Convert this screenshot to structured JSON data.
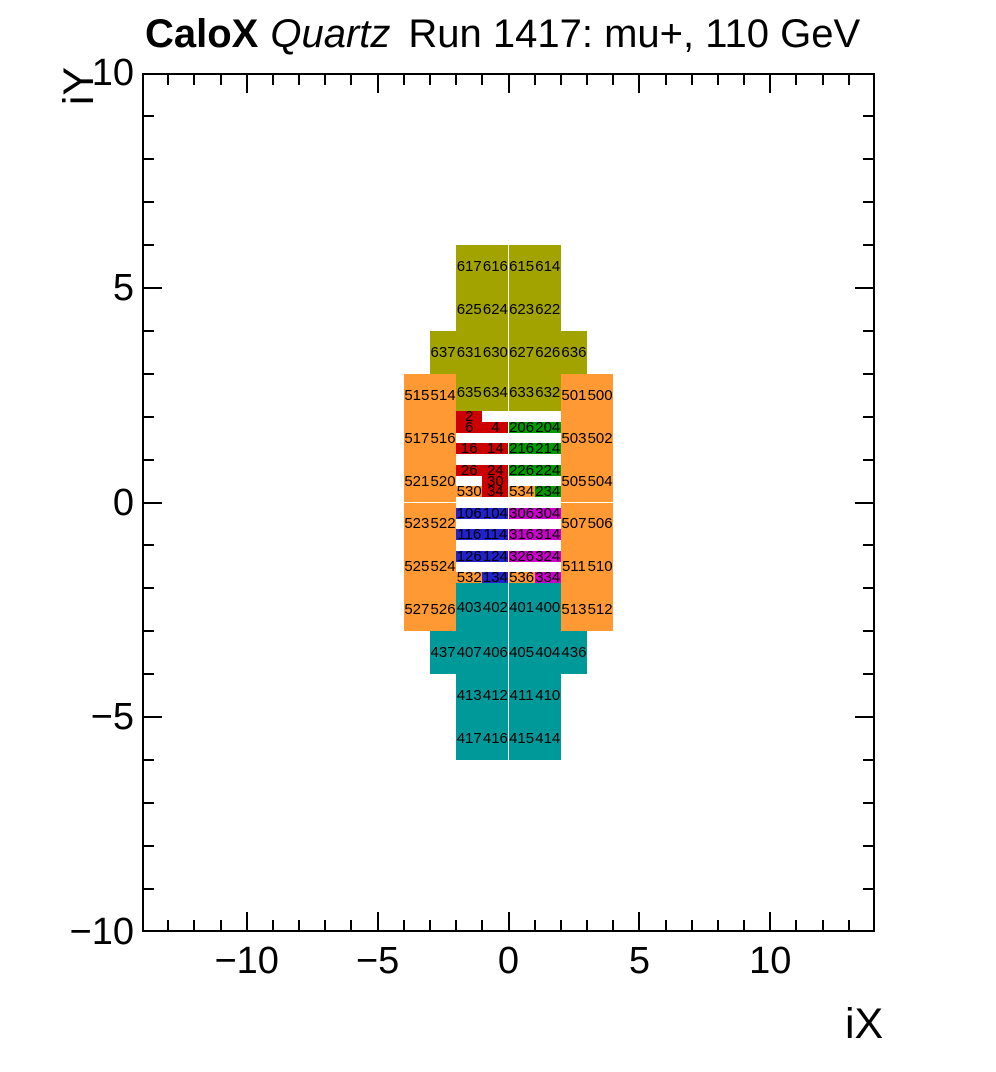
{
  "title": {
    "bold": "CaloX",
    "italic": "Quartz",
    "rest": "Run 1417: mu+, 110 GeV"
  },
  "chart_data": {
    "type": "heatmap",
    "title": "CaloX Quartz  Run 1417: mu+, 110 GeV",
    "xlabel": "iX",
    "ylabel": "iY",
    "xlim": [
      -14,
      14
    ],
    "ylim": [
      -10,
      10
    ],
    "x_major_ticks": [
      -10,
      -5,
      0,
      5,
      10
    ],
    "x_tick_labels": [
      "−10",
      "−5",
      "0",
      "5",
      "10"
    ],
    "y_major_ticks": [
      -10,
      -5,
      0,
      5,
      10
    ],
    "y_tick_labels": [
      "−10",
      "−5",
      "0",
      "5",
      "10"
    ],
    "minor_tick_step": 1,
    "grid": false,
    "legend": null,
    "colors": {
      "olive": "#a3a300",
      "orange": "#ff9933",
      "red": "#cc0000",
      "green": "#009900",
      "blue": "#2222cc",
      "magenta": "#cc00cc",
      "teal": "#009999"
    },
    "cells": [
      {
        "id": "617",
        "x": -2,
        "y": 5,
        "w": 1,
        "h": 1,
        "color": "olive"
      },
      {
        "id": "616",
        "x": -1,
        "y": 5,
        "w": 1,
        "h": 1,
        "color": "olive"
      },
      {
        "id": "615",
        "x": 0,
        "y": 5,
        "w": 1,
        "h": 1,
        "color": "olive"
      },
      {
        "id": "614",
        "x": 1,
        "y": 5,
        "w": 1,
        "h": 1,
        "color": "olive"
      },
      {
        "id": "625",
        "x": -2,
        "y": 4,
        "w": 1,
        "h": 1,
        "color": "olive"
      },
      {
        "id": "624",
        "x": -1,
        "y": 4,
        "w": 1,
        "h": 1,
        "color": "olive"
      },
      {
        "id": "623",
        "x": 0,
        "y": 4,
        "w": 1,
        "h": 1,
        "color": "olive"
      },
      {
        "id": "622",
        "x": 1,
        "y": 4,
        "w": 1,
        "h": 1,
        "color": "olive"
      },
      {
        "id": "637",
        "x": -3,
        "y": 3,
        "w": 1,
        "h": 1,
        "color": "olive"
      },
      {
        "id": "631",
        "x": -2,
        "y": 3,
        "w": 1,
        "h": 1,
        "color": "olive"
      },
      {
        "id": "630",
        "x": -1,
        "y": 3,
        "w": 1,
        "h": 1,
        "color": "olive"
      },
      {
        "id": "627",
        "x": 0,
        "y": 3,
        "w": 1,
        "h": 1,
        "color": "olive"
      },
      {
        "id": "626",
        "x": 1,
        "y": 3,
        "w": 1,
        "h": 1,
        "color": "olive"
      },
      {
        "id": "636",
        "x": 2,
        "y": 3,
        "w": 1,
        "h": 1,
        "color": "olive"
      },
      {
        "id": "635",
        "x": -2,
        "y": 2.125,
        "w": 1,
        "h": 0.875,
        "color": "olive"
      },
      {
        "id": "634",
        "x": -1,
        "y": 2.125,
        "w": 1,
        "h": 0.875,
        "color": "olive"
      },
      {
        "id": "633",
        "x": 0,
        "y": 2.125,
        "w": 1,
        "h": 0.875,
        "color": "olive"
      },
      {
        "id": "632",
        "x": 1,
        "y": 2.125,
        "w": 1,
        "h": 0.875,
        "color": "olive"
      },
      {
        "id": "515",
        "x": -4,
        "y": 2,
        "w": 1,
        "h": 1,
        "color": "orange"
      },
      {
        "id": "514",
        "x": -3,
        "y": 2,
        "w": 1,
        "h": 1,
        "color": "orange"
      },
      {
        "id": "501",
        "x": 2,
        "y": 2,
        "w": 1,
        "h": 1,
        "color": "orange"
      },
      {
        "id": "500",
        "x": 3,
        "y": 2,
        "w": 1,
        "h": 1,
        "color": "orange"
      },
      {
        "id": "517",
        "x": -4,
        "y": 1,
        "w": 1,
        "h": 1,
        "color": "orange"
      },
      {
        "id": "516",
        "x": -3,
        "y": 1,
        "w": 1,
        "h": 1,
        "color": "orange"
      },
      {
        "id": "503",
        "x": 2,
        "y": 1,
        "w": 1,
        "h": 1,
        "color": "orange"
      },
      {
        "id": "502",
        "x": 3,
        "y": 1,
        "w": 1,
        "h": 1,
        "color": "orange"
      },
      {
        "id": "521",
        "x": -4,
        "y": 0,
        "w": 1,
        "h": 1,
        "color": "orange"
      },
      {
        "id": "520",
        "x": -3,
        "y": 0,
        "w": 1,
        "h": 1,
        "color": "orange"
      },
      {
        "id": "505",
        "x": 2,
        "y": 0,
        "w": 1,
        "h": 1,
        "color": "orange"
      },
      {
        "id": "504",
        "x": 3,
        "y": 0,
        "w": 1,
        "h": 1,
        "color": "orange"
      },
      {
        "id": "523",
        "x": -4,
        "y": -1,
        "w": 1,
        "h": 1,
        "color": "orange"
      },
      {
        "id": "522",
        "x": -3,
        "y": -1,
        "w": 1,
        "h": 1,
        "color": "orange"
      },
      {
        "id": "507",
        "x": 2,
        "y": -1,
        "w": 1,
        "h": 1,
        "color": "orange"
      },
      {
        "id": "506",
        "x": 3,
        "y": -1,
        "w": 1,
        "h": 1,
        "color": "orange"
      },
      {
        "id": "525",
        "x": -4,
        "y": -2,
        "w": 1,
        "h": 1,
        "color": "orange"
      },
      {
        "id": "524",
        "x": -3,
        "y": -2,
        "w": 1,
        "h": 1,
        "color": "orange"
      },
      {
        "id": "511",
        "x": 2,
        "y": -2,
        "w": 1,
        "h": 1,
        "color": "orange"
      },
      {
        "id": "510",
        "x": 3,
        "y": -2,
        "w": 1,
        "h": 1,
        "color": "orange"
      },
      {
        "id": "527",
        "x": -4,
        "y": -3,
        "w": 1,
        "h": 1,
        "color": "orange"
      },
      {
        "id": "526",
        "x": -3,
        "y": -3,
        "w": 1,
        "h": 1,
        "color": "orange"
      },
      {
        "id": "513",
        "x": 2,
        "y": -3,
        "w": 1,
        "h": 1,
        "color": "orange"
      },
      {
        "id": "512",
        "x": 3,
        "y": -3,
        "w": 1,
        "h": 1,
        "color": "orange"
      },
      {
        "id": "403",
        "x": -2,
        "y": -3,
        "w": 1,
        "h": 1.125,
        "color": "teal"
      },
      {
        "id": "402",
        "x": -1,
        "y": -3,
        "w": 1,
        "h": 1.125,
        "color": "teal"
      },
      {
        "id": "401",
        "x": 0,
        "y": -3,
        "w": 1,
        "h": 1.125,
        "color": "teal"
      },
      {
        "id": "400",
        "x": 1,
        "y": -3,
        "w": 1,
        "h": 1.125,
        "color": "teal"
      },
      {
        "id": "437",
        "x": -3,
        "y": -4,
        "w": 1,
        "h": 1,
        "color": "teal"
      },
      {
        "id": "407",
        "x": -2,
        "y": -4,
        "w": 1,
        "h": 1,
        "color": "teal"
      },
      {
        "id": "406",
        "x": -1,
        "y": -4,
        "w": 1,
        "h": 1,
        "color": "teal"
      },
      {
        "id": "405",
        "x": 0,
        "y": -4,
        "w": 1,
        "h": 1,
        "color": "teal"
      },
      {
        "id": "404",
        "x": 1,
        "y": -4,
        "w": 1,
        "h": 1,
        "color": "teal"
      },
      {
        "id": "436",
        "x": 2,
        "y": -4,
        "w": 1,
        "h": 1,
        "color": "teal"
      },
      {
        "id": "413",
        "x": -2,
        "y": -5,
        "w": 1,
        "h": 1,
        "color": "teal"
      },
      {
        "id": "412",
        "x": -1,
        "y": -5,
        "w": 1,
        "h": 1,
        "color": "teal"
      },
      {
        "id": "411",
        "x": 0,
        "y": -5,
        "w": 1,
        "h": 1,
        "color": "teal"
      },
      {
        "id": "410",
        "x": 1,
        "y": -5,
        "w": 1,
        "h": 1,
        "color": "teal"
      },
      {
        "id": "417",
        "x": -2,
        "y": -6,
        "w": 1,
        "h": 1,
        "color": "teal"
      },
      {
        "id": "416",
        "x": -1,
        "y": -6,
        "w": 1,
        "h": 1,
        "color": "teal"
      },
      {
        "id": "415",
        "x": 0,
        "y": -6,
        "w": 1,
        "h": 1,
        "color": "teal"
      },
      {
        "id": "414",
        "x": 1,
        "y": -6,
        "w": 1,
        "h": 1,
        "color": "teal"
      },
      {
        "id": "2",
        "x": -2,
        "y": 1.875,
        "w": 1,
        "h": 0.25,
        "color": "red"
      },
      {
        "id": "6",
        "x": -2,
        "y": 1.625,
        "w": 1,
        "h": 0.25,
        "color": "red"
      },
      {
        "id": "4",
        "x": -1,
        "y": 1.625,
        "w": 1,
        "h": 0.25,
        "color": "red"
      },
      {
        "id": "206",
        "x": 0,
        "y": 1.625,
        "w": 1,
        "h": 0.25,
        "color": "green"
      },
      {
        "id": "204",
        "x": 1,
        "y": 1.625,
        "w": 1,
        "h": 0.25,
        "color": "green"
      },
      {
        "id": "16",
        "x": -2,
        "y": 1.125,
        "w": 1,
        "h": 0.25,
        "color": "red"
      },
      {
        "id": "14",
        "x": -1,
        "y": 1.125,
        "w": 1,
        "h": 0.25,
        "color": "red"
      },
      {
        "id": "216",
        "x": 0,
        "y": 1.125,
        "w": 1,
        "h": 0.25,
        "color": "green"
      },
      {
        "id": "214",
        "x": 1,
        "y": 1.125,
        "w": 1,
        "h": 0.25,
        "color": "green"
      },
      {
        "id": "26",
        "x": -2,
        "y": 0.625,
        "w": 1,
        "h": 0.25,
        "color": "red"
      },
      {
        "id": "24",
        "x": -1,
        "y": 0.625,
        "w": 1,
        "h": 0.25,
        "color": "red"
      },
      {
        "id": "226",
        "x": 0,
        "y": 0.625,
        "w": 1,
        "h": 0.25,
        "color": "green"
      },
      {
        "id": "224",
        "x": 1,
        "y": 0.625,
        "w": 1,
        "h": 0.25,
        "color": "green"
      },
      {
        "id": "30",
        "x": -1,
        "y": 0.375,
        "w": 1,
        "h": 0.25,
        "color": "red"
      },
      {
        "id": "530",
        "x": -2,
        "y": 0.125,
        "w": 1,
        "h": 0.25,
        "color": "orange"
      },
      {
        "id": "34",
        "x": -1,
        "y": 0.125,
        "w": 1,
        "h": 0.25,
        "color": "red"
      },
      {
        "id": "534",
        "x": 0,
        "y": 0.125,
        "w": 1,
        "h": 0.25,
        "color": "orange"
      },
      {
        "id": "234",
        "x": 1,
        "y": 0.125,
        "w": 1,
        "h": 0.25,
        "color": "green"
      },
      {
        "id": "106",
        "x": -2,
        "y": -0.375,
        "w": 1,
        "h": 0.25,
        "color": "blue"
      },
      {
        "id": "104",
        "x": -1,
        "y": -0.375,
        "w": 1,
        "h": 0.25,
        "color": "blue"
      },
      {
        "id": "306",
        "x": 0,
        "y": -0.375,
        "w": 1,
        "h": 0.25,
        "color": "magenta"
      },
      {
        "id": "304",
        "x": 1,
        "y": -0.375,
        "w": 1,
        "h": 0.25,
        "color": "magenta"
      },
      {
        "id": "116",
        "x": -2,
        "y": -0.875,
        "w": 1,
        "h": 0.25,
        "color": "blue"
      },
      {
        "id": "114",
        "x": -1,
        "y": -0.875,
        "w": 1,
        "h": 0.25,
        "color": "blue"
      },
      {
        "id": "316",
        "x": 0,
        "y": -0.875,
        "w": 1,
        "h": 0.25,
        "color": "magenta"
      },
      {
        "id": "314",
        "x": 1,
        "y": -0.875,
        "w": 1,
        "h": 0.25,
        "color": "magenta"
      },
      {
        "id": "126",
        "x": -2,
        "y": -1.375,
        "w": 1,
        "h": 0.25,
        "color": "blue"
      },
      {
        "id": "124",
        "x": -1,
        "y": -1.375,
        "w": 1,
        "h": 0.25,
        "color": "blue"
      },
      {
        "id": "326",
        "x": 0,
        "y": -1.375,
        "w": 1,
        "h": 0.25,
        "color": "magenta"
      },
      {
        "id": "324",
        "x": 1,
        "y": -1.375,
        "w": 1,
        "h": 0.25,
        "color": "magenta"
      },
      {
        "id": "532",
        "x": -2,
        "y": -1.875,
        "w": 1,
        "h": 0.25,
        "color": "orange"
      },
      {
        "id": "134",
        "x": -1,
        "y": -1.875,
        "w": 1,
        "h": 0.25,
        "color": "blue"
      },
      {
        "id": "536",
        "x": 0,
        "y": -1.875,
        "w": 1,
        "h": 0.25,
        "color": "orange"
      },
      {
        "id": "334",
        "x": 1,
        "y": -1.875,
        "w": 1,
        "h": 0.25,
        "color": "magenta"
      }
    ]
  }
}
